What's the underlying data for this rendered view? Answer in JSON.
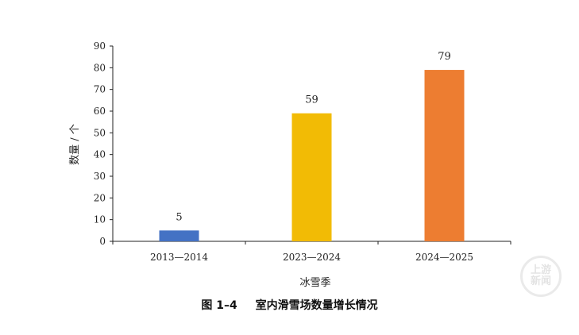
{
  "chart_data": {
    "type": "bar",
    "categories": [
      "2013—2014",
      "2023—2024",
      "2024—2025"
    ],
    "values": [
      5,
      59,
      79
    ],
    "data_labels": [
      "5",
      "59",
      "79"
    ],
    "bar_colors": [
      "#4472c4",
      "#f2bb05",
      "#ed7d31"
    ],
    "xlabel": "冰雪季",
    "ylabel": "数量 / 个",
    "ylim": [
      0,
      90
    ],
    "yticks": [
      0,
      10,
      20,
      30,
      40,
      50,
      60,
      70,
      80,
      90
    ],
    "grid": false,
    "legend": "none"
  },
  "caption": {
    "figure_number": "图 1–4",
    "title": "室内滑雪场数量增长情况"
  },
  "watermark": {
    "line1": "上游",
    "line2": "新闻"
  }
}
